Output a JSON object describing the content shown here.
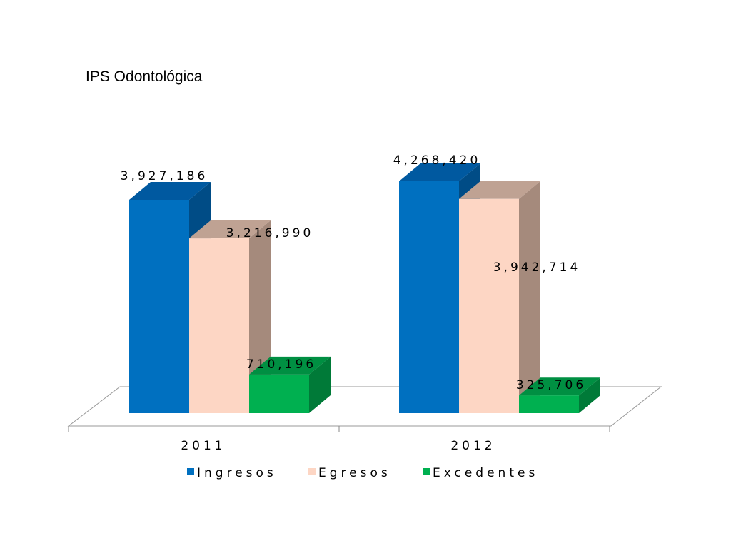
{
  "chart_data": {
    "type": "bar",
    "title": "IPS Odontológica",
    "categories": [
      "2011",
      "2012"
    ],
    "series": [
      {
        "name": "Ingresos",
        "values": [
          3927186,
          4268420
        ],
        "labels": [
          "3,927,186",
          "4,268,420"
        ]
      },
      {
        "name": "Egresos",
        "values": [
          3216990,
          3942714
        ],
        "labels": [
          "3,216,990",
          "3,942,714"
        ]
      },
      {
        "name": "Excedentes",
        "values": [
          710196,
          325706
        ],
        "labels": [
          "710,196",
          "325,706"
        ]
      }
    ],
    "colors": {
      "Ingresos": {
        "front": "#0070C0",
        "side": "#004C86",
        "top": "#0059A0"
      },
      "Egresos": {
        "front": "#FDD6C4",
        "side": "#A58A7C",
        "top": "#BFA293"
      },
      "Excedentes": {
        "front": "#00B050",
        "side": "#007A38",
        "top": "#008F42"
      }
    },
    "ylim": [
      0,
      4268420
    ],
    "grid": false,
    "legend_position": "bottom",
    "projection": "3d-column"
  }
}
